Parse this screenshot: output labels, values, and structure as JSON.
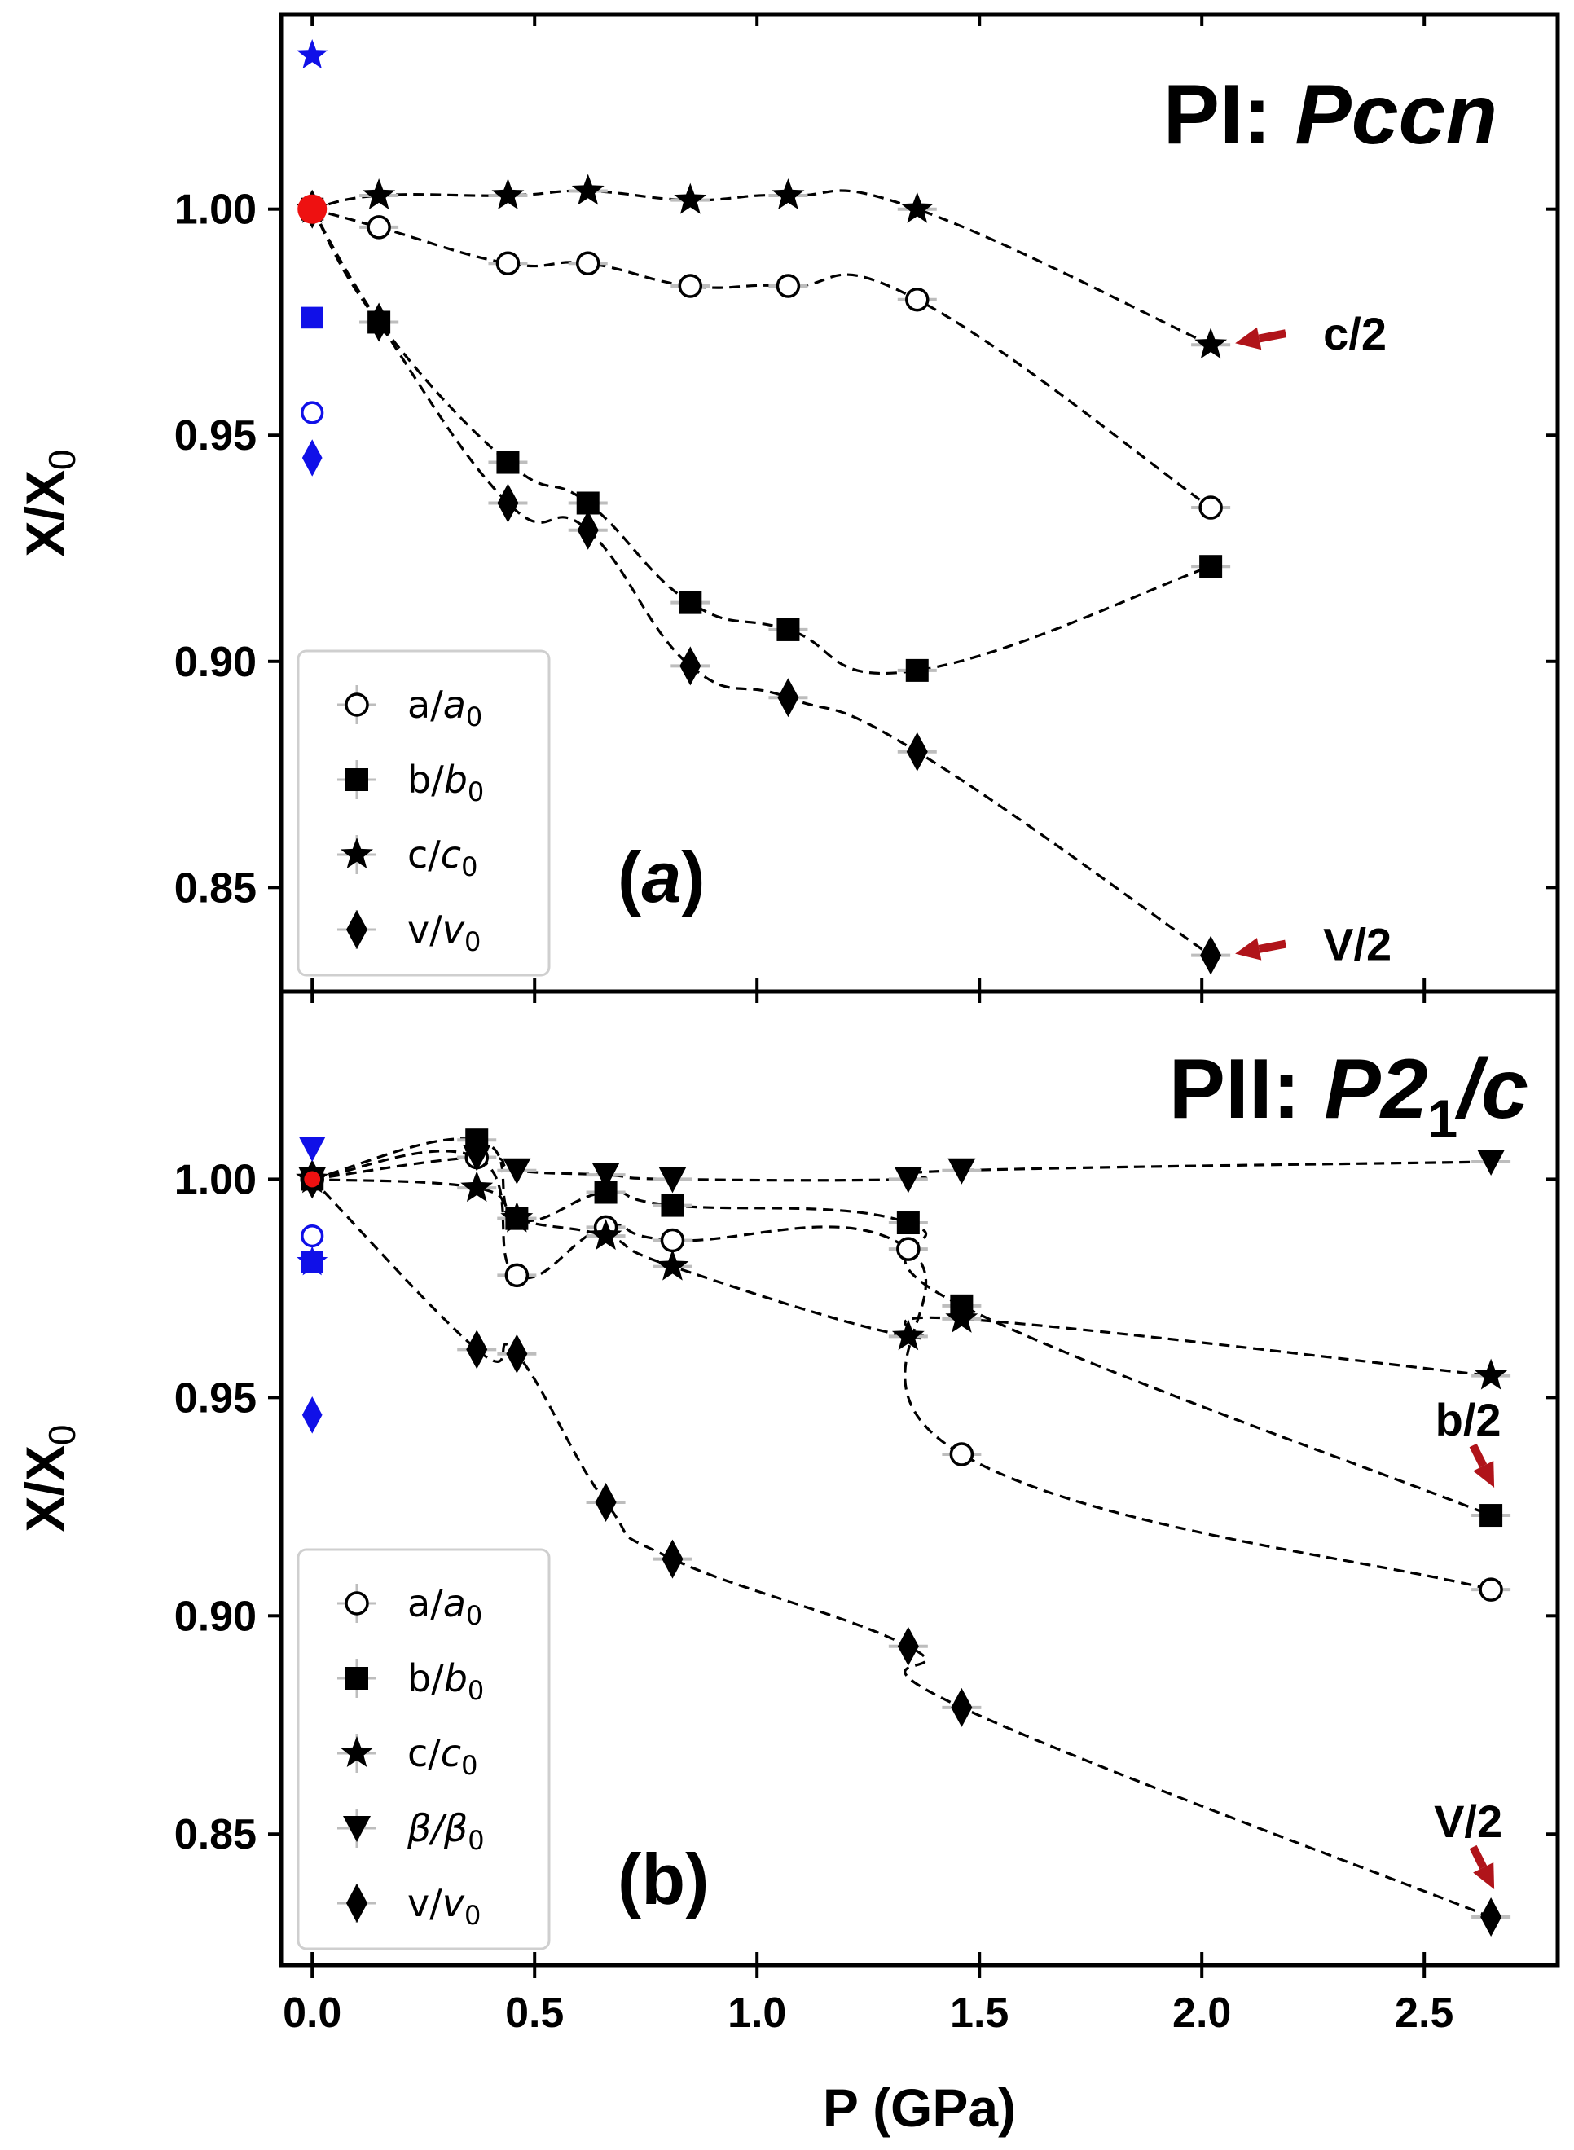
{
  "chart_data": [
    {
      "panel": "top",
      "type": "scatter",
      "title_prefix": "PI: ",
      "title_italic": "Pccn",
      "panel_label_open": "(",
      "panel_label_letter": "a",
      "panel_label_close": ")",
      "xlabel": "P (GPa)",
      "ylabel": "X/X",
      "ylabel_sub": "0",
      "xlim": [
        -0.07,
        2.8
      ],
      "ylim": [
        0.827,
        1.043
      ],
      "yticks": [
        "0.85",
        "0.90",
        "0.95",
        "1.00"
      ],
      "legend_position": "lower-left",
      "series": [
        {
          "name": "a/a0",
          "label_main": "a/",
          "label_ital": "a",
          "label_sub": "0",
          "marker": "circle-open",
          "x": [
            0.0,
            0.15,
            0.44,
            0.62,
            0.85,
            1.07,
            1.36,
            2.02
          ],
          "y": [
            1.0,
            0.996,
            0.988,
            0.988,
            0.983,
            0.983,
            0.98,
            0.934
          ]
        },
        {
          "name": "b/b0",
          "label_main": "b/",
          "label_ital": "b",
          "label_sub": "0",
          "marker": "square",
          "x": [
            0.0,
            0.15,
            0.44,
            0.62,
            0.85,
            1.07,
            1.36,
            2.02
          ],
          "y": [
            1.0,
            0.975,
            0.944,
            0.935,
            0.913,
            0.907,
            0.898,
            0.921
          ]
        },
        {
          "name": "c/c0",
          "label_main": "c/",
          "label_ital": "c",
          "label_sub": "0",
          "marker": "star",
          "x": [
            0.0,
            0.15,
            0.44,
            0.62,
            0.85,
            1.07,
            1.36,
            2.02
          ],
          "y": [
            1.0,
            1.003,
            1.003,
            1.004,
            1.002,
            1.003,
            1.0,
            0.97
          ]
        },
        {
          "name": "v/v0",
          "label_main": "v/",
          "label_ital": "v",
          "label_sub": "0",
          "marker": "diamond",
          "x": [
            0.0,
            0.15,
            0.44,
            0.62,
            0.85,
            1.07,
            1.36,
            2.02
          ],
          "y": [
            1.0,
            0.975,
            0.935,
            0.929,
            0.899,
            0.892,
            0.88,
            0.835
          ]
        }
      ],
      "reference_points": [
        {
          "marker": "star",
          "x": 0.0,
          "y": 1.034
        },
        {
          "marker": "square",
          "x": 0.0,
          "y": 0.976
        },
        {
          "marker": "circle-open",
          "x": 0.0,
          "y": 0.955
        },
        {
          "marker": "diamond",
          "x": 0.0,
          "y": 0.945
        }
      ],
      "annotations": [
        {
          "text": "c/2",
          "target_x": 2.02,
          "target_y": 0.97
        },
        {
          "text": "V/2",
          "target_x": 2.02,
          "target_y": 0.835
        }
      ]
    },
    {
      "panel": "bottom",
      "type": "scatter",
      "title_prefix": "PII: ",
      "title_italic": "P2",
      "title_sub": "1",
      "title_suffix": "/c",
      "panel_label_open": "(",
      "panel_label_letter": "b",
      "panel_label_close": ")",
      "xlabel": "P (GPa)",
      "ylabel": "X/X",
      "ylabel_sub": "0",
      "xlim": [
        -0.07,
        2.8
      ],
      "ylim": [
        0.82,
        1.043
      ],
      "xticks": [
        "0.0",
        "0.5",
        "1.0",
        "1.5",
        "2.0",
        "2.5"
      ],
      "yticks": [
        "0.85",
        "0.90",
        "0.95",
        "1.00"
      ],
      "legend_position": "lower-left",
      "series": [
        {
          "name": "a/a0",
          "label_main": "a/",
          "label_ital": "a",
          "label_sub": "0",
          "marker": "circle-open",
          "x": [
            0.0,
            0.37,
            0.46,
            0.66,
            0.81,
            1.34,
            1.46,
            2.65
          ],
          "y": [
            1.0,
            1.005,
            0.978,
            0.989,
            0.986,
            0.984,
            0.937,
            0.906
          ]
        },
        {
          "name": "b/b0",
          "label_main": "b/",
          "label_ital": "b",
          "label_sub": "0",
          "marker": "square",
          "x": [
            0.0,
            0.37,
            0.46,
            0.66,
            0.81,
            1.34,
            1.46,
            2.65
          ],
          "y": [
            1.0,
            1.009,
            0.991,
            0.997,
            0.994,
            0.99,
            0.971,
            0.923
          ]
        },
        {
          "name": "c/c0",
          "label_main": "c/",
          "label_ital": "c",
          "label_sub": "0",
          "marker": "star",
          "x": [
            0.0,
            0.37,
            0.46,
            0.66,
            0.81,
            1.34,
            1.46,
            2.65
          ],
          "y": [
            1.0,
            0.998,
            0.991,
            0.987,
            0.98,
            0.964,
            0.968,
            0.955
          ]
        },
        {
          "name": "beta/beta0",
          "label_main": "",
          "label_ital": "β/β",
          "label_sub": "0",
          "marker": "triangle-down",
          "x": [
            0.0,
            0.37,
            0.46,
            0.66,
            0.81,
            1.34,
            1.46,
            2.65
          ],
          "y": [
            1.0,
            1.005,
            1.002,
            1.001,
            1.0,
            1.0,
            1.002,
            1.004
          ]
        },
        {
          "name": "v/v0",
          "label_main": "v/",
          "label_ital": "v",
          "label_sub": "0",
          "marker": "diamond",
          "x": [
            0.0,
            0.37,
            0.46,
            0.66,
            0.81,
            1.34,
            1.46,
            2.65
          ],
          "y": [
            1.0,
            0.961,
            0.96,
            0.926,
            0.913,
            0.893,
            0.879,
            0.831
          ]
        }
      ],
      "reference_points": [
        {
          "marker": "triangle-down",
          "x": 0.0,
          "y": 1.007
        },
        {
          "marker": "circle-open",
          "x": 0.0,
          "y": 0.987
        },
        {
          "marker": "square",
          "x": 0.0,
          "y": 0.981
        },
        {
          "marker": "star",
          "x": 0.0,
          "y": 0.981
        },
        {
          "marker": "diamond",
          "x": 0.0,
          "y": 0.946
        }
      ],
      "annotations": [
        {
          "text": "b/2",
          "target_x": 2.65,
          "target_y": 0.923
        },
        {
          "text": "V/2",
          "target_x": 2.65,
          "target_y": 0.831
        }
      ]
    }
  ],
  "colors": {
    "data": "#000000",
    "reference": "#1010e8",
    "origin_highlight": "#ee1111",
    "arrow": "#b0141a",
    "errorbar": "#bdbdbd"
  }
}
